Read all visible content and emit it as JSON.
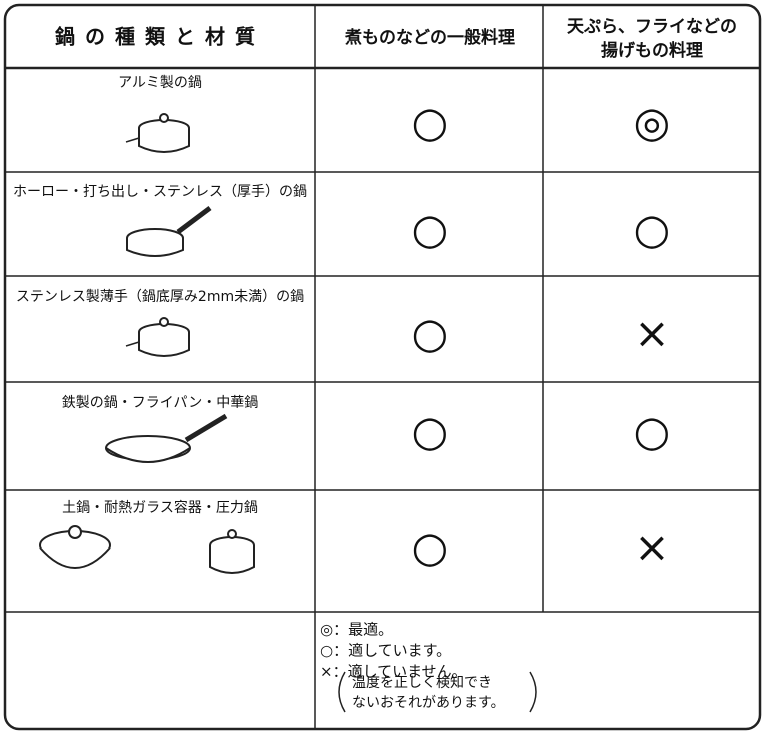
{
  "table": {
    "header": [
      "鍋の種類と材質",
      "煮ものなどの一般料理",
      [
        "天ぷら、フライなどの",
        "揚げもの料理"
      ]
    ],
    "rows": [
      [
        "アルミ製の鍋",
        "○",
        "◎"
      ],
      [
        "ホーロー・打ち出し・ステンレス（厚手）の鍋",
        "○",
        "○"
      ],
      [
        "ステンレス製薄手（鍋底厚み2mm未満）の鍋",
        "○",
        "×"
      ],
      [
        "鉄製の鍋・フライパン・中華鍋",
        "○",
        "○"
      ],
      [
        "土鍋・耐熱ガラス容器・圧力鍋",
        "○",
        "×"
      ]
    ],
    "legend": [
      "◎：最適。",
      "○：適しています。",
      "×：適していません。"
    ],
    "note": [
      "温度を正しく検知でき",
      "ないおそれがあります。"
    ]
  }
}
